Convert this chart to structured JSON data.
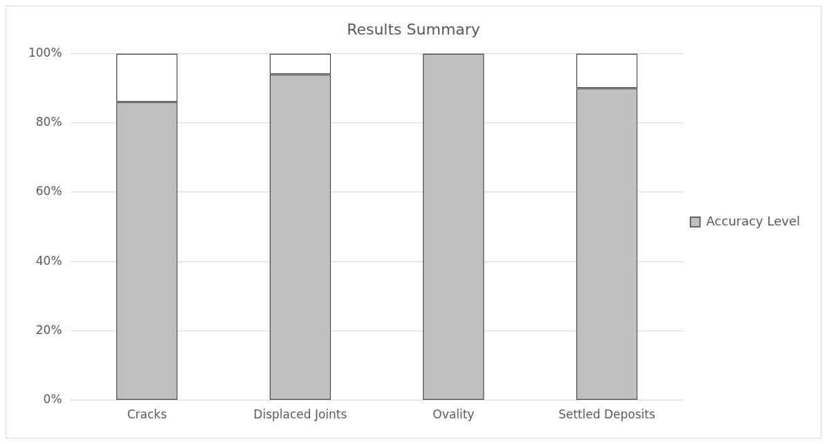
{
  "chart_data": {
    "type": "bar",
    "title": "Results Summary",
    "stacked": true,
    "categories": [
      "Cracks",
      "Displaced Joints",
      "Ovality",
      "Settled Deposits"
    ],
    "series": [
      {
        "name": "Accuracy Level",
        "color": "#bfbfbf",
        "values": [
          86,
          94,
          100,
          90
        ]
      },
      {
        "color": "#ffffff",
        "values": [
          14,
          6,
          0,
          10
        ]
      }
    ],
    "ylim": [
      0,
      100
    ],
    "yticks": [
      {
        "value": 0,
        "label": "0%"
      },
      {
        "value": 20,
        "label": "20%"
      },
      {
        "value": 40,
        "label": "40%"
      },
      {
        "value": 60,
        "label": "60%"
      },
      {
        "value": 80,
        "label": "80%"
      },
      {
        "value": 100,
        "label": "100%"
      }
    ],
    "grid": "y",
    "legend": "right"
  }
}
